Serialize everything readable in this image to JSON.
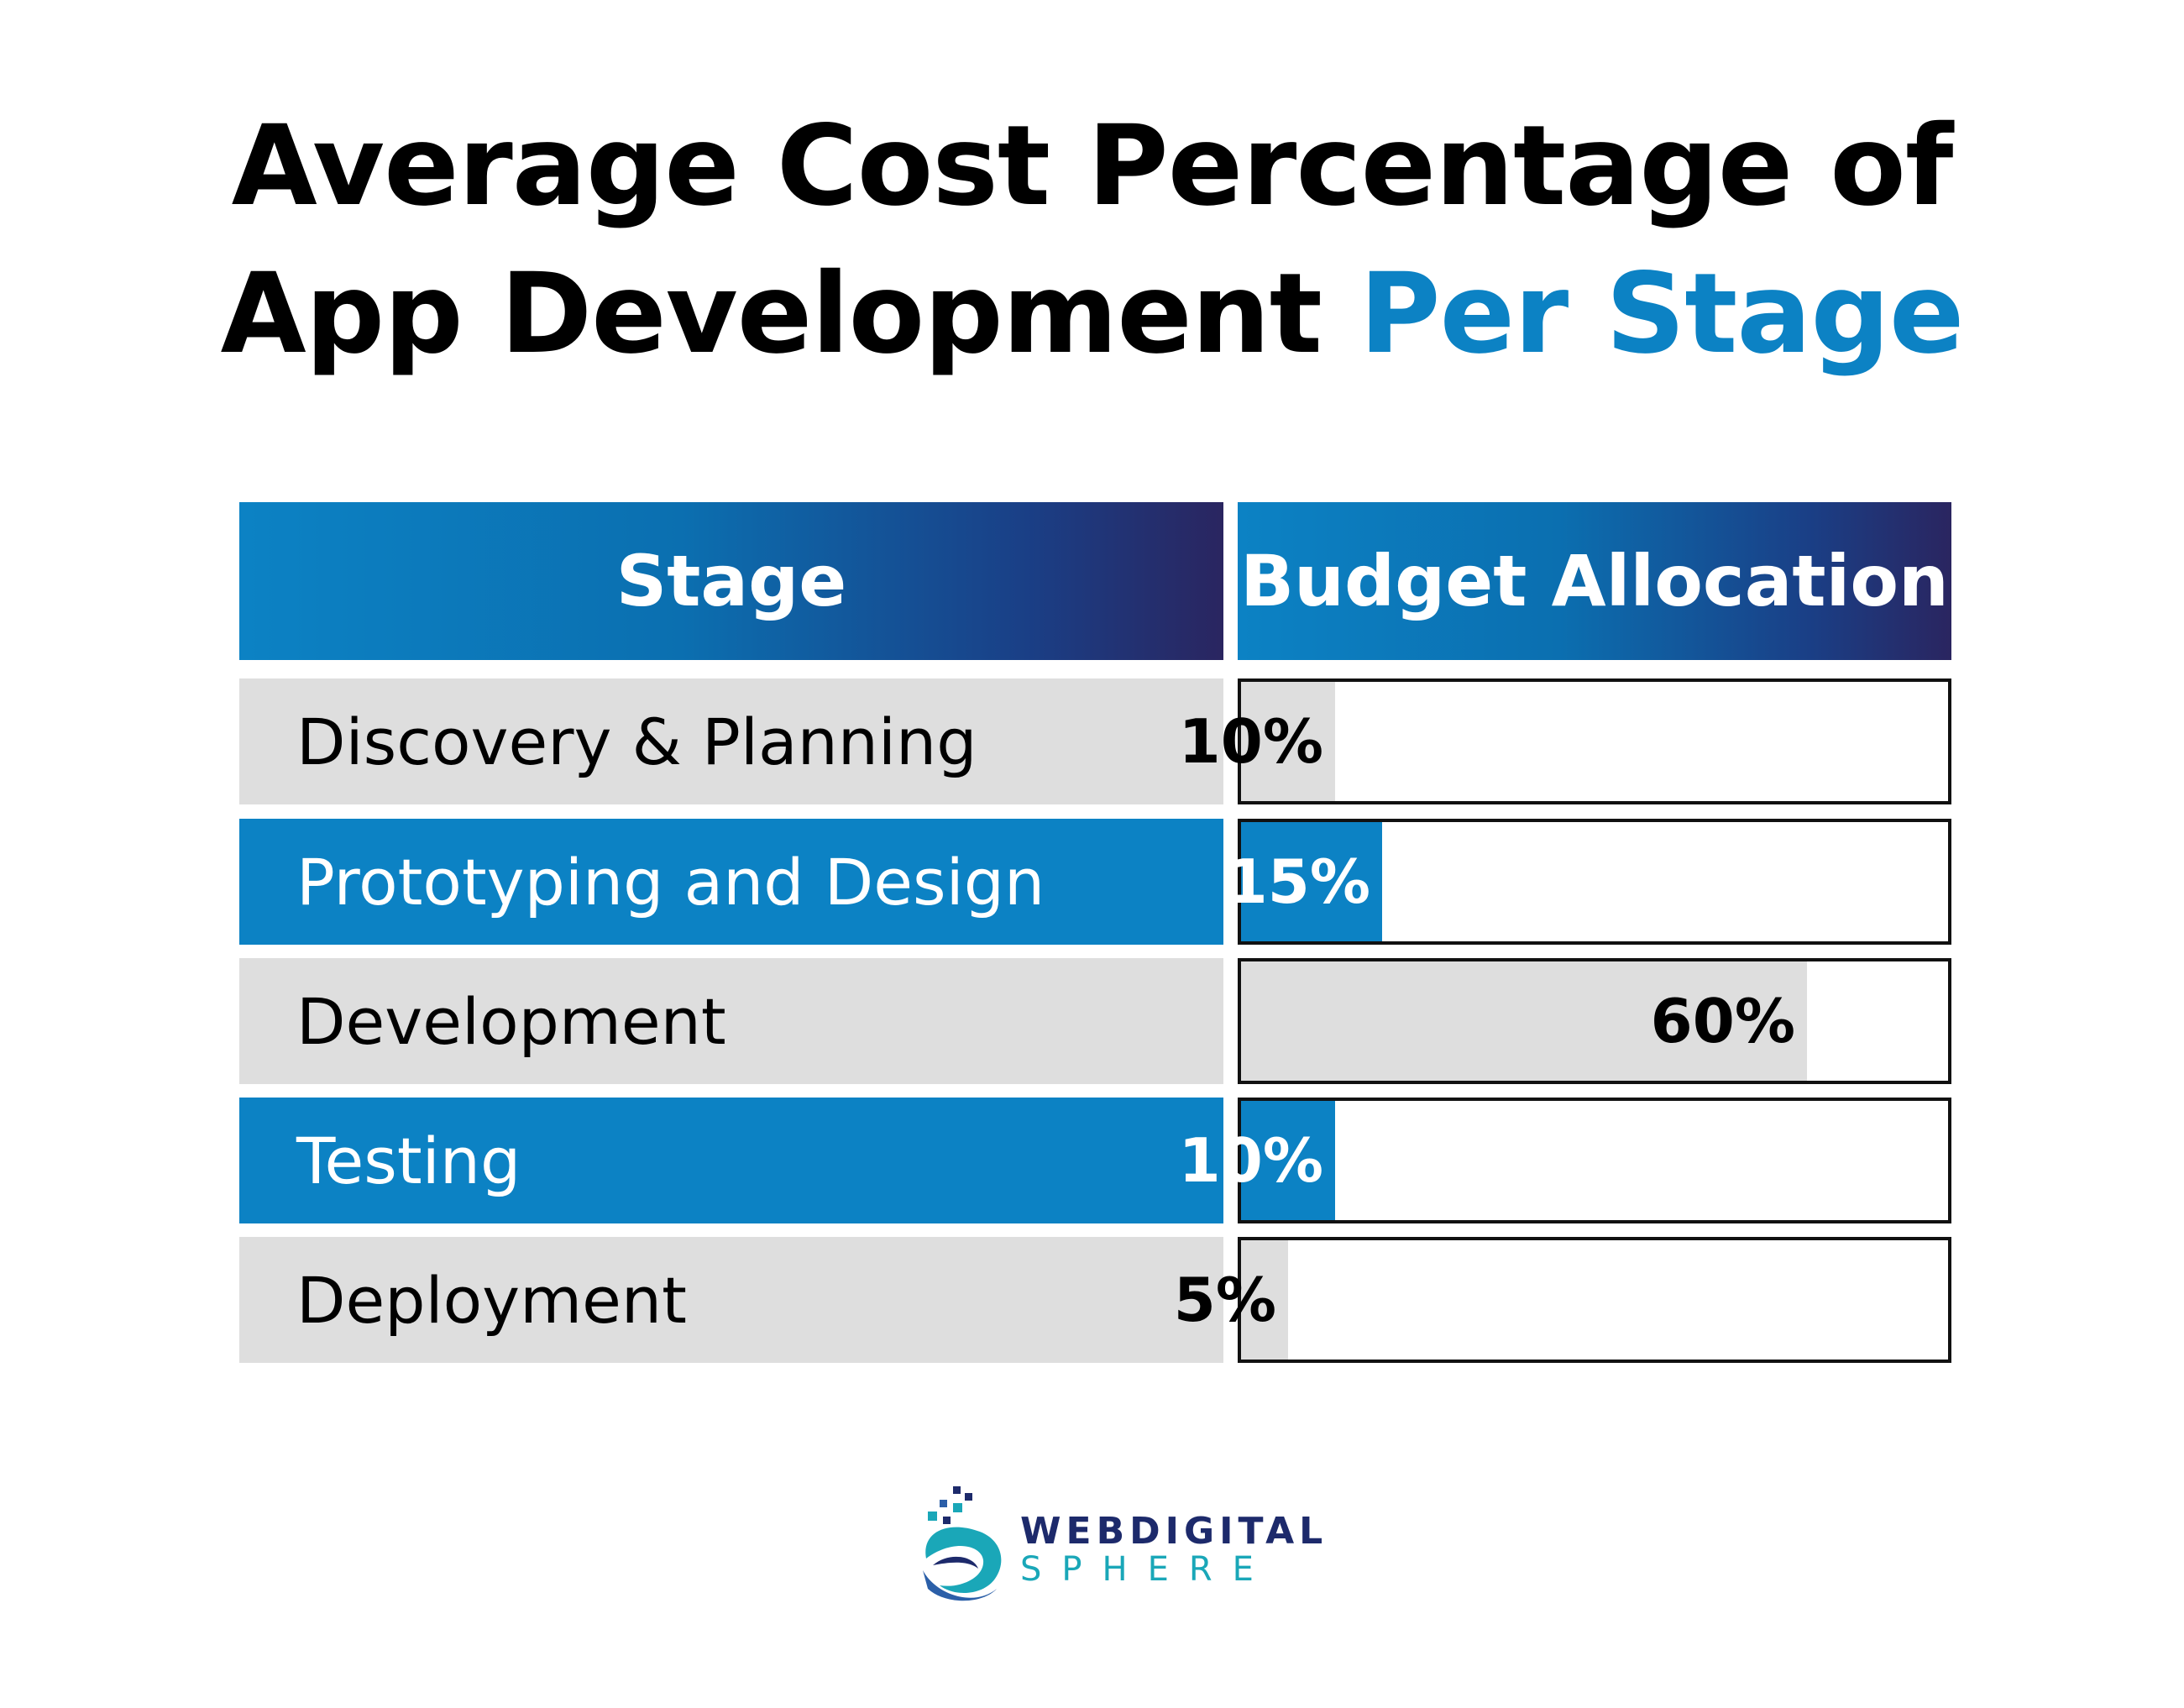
{
  "title": {
    "line1": "Average Cost Percentage of",
    "line2_main": "App Development",
    "line2_accent": "Per Stage"
  },
  "colors": {
    "accent": "#0c82c4",
    "gray": "#dedede",
    "header_gradient_end": "#2a2560"
  },
  "chart_data": {
    "type": "table",
    "columns": [
      "Stage",
      "Budget Allocation"
    ],
    "rows": [
      {
        "stage": "Discovery & Planning",
        "value": 10,
        "label": "10%",
        "style": "gray"
      },
      {
        "stage": "Prototyping and Design",
        "value": 15,
        "label": "15%",
        "style": "blue"
      },
      {
        "stage": "Development",
        "value": 60,
        "label": "60%",
        "style": "gray"
      },
      {
        "stage": "Testing",
        "value": 10,
        "label": "10%",
        "style": "blue"
      },
      {
        "stage": "Deployment",
        "value": 5,
        "label": "5%",
        "style": "gray"
      }
    ],
    "value_max": 75
  },
  "logo": {
    "line1": "WEBDIGITAL",
    "line2": "SPHERE",
    "icon": "sphere-logo-icon"
  }
}
